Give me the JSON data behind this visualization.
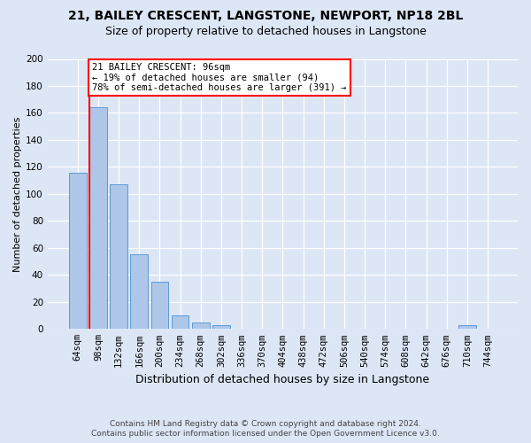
{
  "title": "21, BAILEY CRESCENT, LANGSTONE, NEWPORT, NP18 2BL",
  "subtitle": "Size of property relative to detached houses in Langstone",
  "xlabel": "Distribution of detached houses by size in Langstone",
  "ylabel": "Number of detached properties",
  "bins": [
    "64sqm",
    "98sqm",
    "132sqm",
    "166sqm",
    "200sqm",
    "234sqm",
    "268sqm",
    "302sqm",
    "336sqm",
    "370sqm",
    "404sqm",
    "438sqm",
    "472sqm",
    "506sqm",
    "540sqm",
    "574sqm",
    "608sqm",
    "642sqm",
    "676sqm",
    "710sqm",
    "744sqm"
  ],
  "values": [
    116,
    164,
    107,
    55,
    35,
    10,
    5,
    3,
    0,
    0,
    0,
    0,
    0,
    0,
    0,
    0,
    0,
    0,
    0,
    3,
    0
  ],
  "bar_color": "#aec6e8",
  "bar_edge_color": "#5b9bd5",
  "background_color": "#dce6f5",
  "vline_x_bin": 1,
  "annotation_title": "21 BAILEY CRESCENT: 96sqm",
  "annotation_line2": "← 19% of detached houses are smaller (94)",
  "annotation_line3": "78% of semi-detached houses are larger (391) →",
  "vline_color": "red",
  "ylim": [
    0,
    200
  ],
  "yticks": [
    0,
    20,
    40,
    60,
    80,
    100,
    120,
    140,
    160,
    180,
    200
  ],
  "footer_line1": "Contains HM Land Registry data © Crown copyright and database right 2024.",
  "footer_line2": "Contains public sector information licensed under the Open Government Licence v3.0.",
  "title_fontsize": 10,
  "subtitle_fontsize": 9,
  "xlabel_fontsize": 9,
  "ylabel_fontsize": 8,
  "tick_fontsize": 7.5,
  "footer_fontsize": 6.5
}
